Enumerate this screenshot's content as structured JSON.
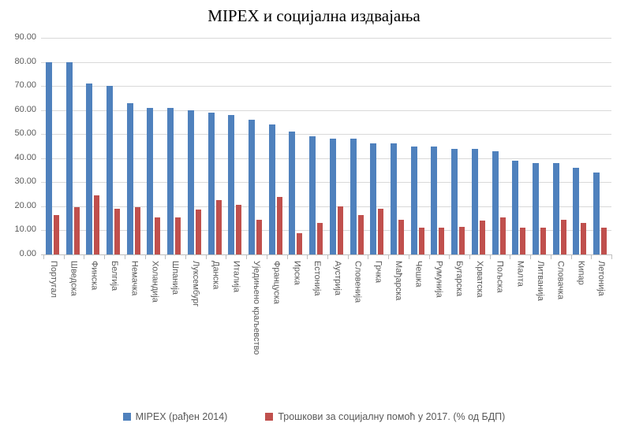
{
  "title": "MIPEX и социјална издвајања",
  "y_axis": {
    "tick_labels": [
      "0.00",
      "10.00",
      "20.00",
      "30.00",
      "40.00",
      "50.00",
      "60.00",
      "70.00",
      "80.00",
      "90.00"
    ],
    "min": 0,
    "max": 90,
    "step": 10
  },
  "legend": [
    {
      "label": "MIPEX (рађен 2014)",
      "color": "#4F81BD"
    },
    {
      "label": "Трошкови за социјалну помоћ у 2017. (% од БДП)",
      "color": "#C0504D"
    }
  ],
  "chart_data": {
    "type": "bar",
    "title": "MIPEX и социјална издвајања",
    "xlabel": "",
    "ylabel": "",
    "ylim": [
      0,
      90
    ],
    "grid": true,
    "legend_position": "bottom",
    "categories": [
      "Португал",
      "Шведска",
      "Финска",
      "Белгија",
      "Немачка",
      "Холандија",
      "Шпанија",
      "Луксембург",
      "Данска",
      "Италија",
      "Уједињено краљевство",
      "Француска",
      "Ирска",
      "Естонија",
      "Аустрија",
      "Словенија",
      "Грчка",
      "Мађарска",
      "Чешка",
      "Румунија",
      "Бугарска",
      "Хрватска",
      "Пољска",
      "Малта",
      "Литванија",
      "Словачка",
      "Кипар",
      "Летонија"
    ],
    "series": [
      {
        "name": "MIPEX (рађен 2014)",
        "color": "#4F81BD",
        "values": [
          80,
          80,
          71,
          70,
          63,
          61,
          61,
          60,
          59,
          58,
          56,
          54,
          51,
          49,
          48,
          48,
          46,
          46,
          45,
          45,
          44,
          44,
          43,
          39,
          38,
          38,
          36,
          34
        ]
      },
      {
        "name": "Трошкови за социјалну помоћ у 2017. (% од БДП)",
        "color": "#C0504D",
        "values": [
          16.5,
          19.5,
          24.5,
          19,
          19.5,
          15.5,
          15.5,
          18.5,
          22.5,
          20.5,
          14.5,
          24,
          9,
          13,
          20,
          16.5,
          19,
          14.5,
          11,
          11,
          11.5,
          14,
          15.5,
          11,
          11,
          14.5,
          13,
          11
        ]
      }
    ]
  }
}
